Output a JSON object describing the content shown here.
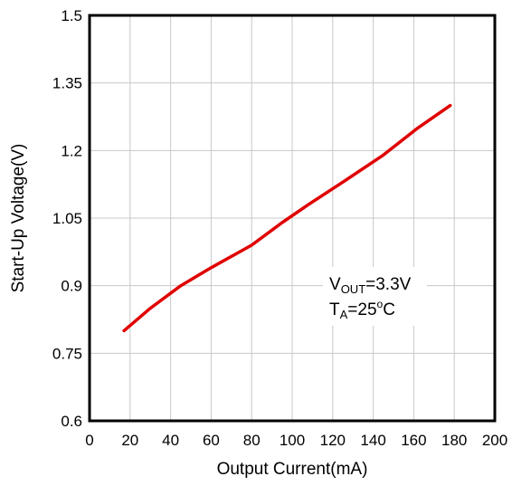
{
  "chart_data": {
    "type": "line",
    "title": "",
    "xlabel": "Output Current(mA)",
    "ylabel": "Start-Up Voltage(V)",
    "xlim": [
      0,
      200
    ],
    "ylim": [
      0.6,
      1.5
    ],
    "xticks": [
      0,
      20,
      40,
      60,
      80,
      100,
      120,
      140,
      160,
      180,
      200
    ],
    "yticks": [
      0.6,
      0.75,
      0.9,
      1.05,
      1.2,
      1.35,
      1.5
    ],
    "xtick_labels": [
      "0",
      "20",
      "40",
      "60",
      "80",
      "100",
      "120",
      "140",
      "160",
      "180",
      "200"
    ],
    "ytick_labels": [
      "0.6",
      "0.75",
      "0.9",
      "1.05",
      "1.2",
      "1.35",
      "1.5"
    ],
    "grid": true,
    "legend": "none",
    "series": [
      {
        "color": "#e00000",
        "x": [
          17,
          30,
          45,
          60,
          80,
          95,
          108,
          125,
          145,
          162,
          178
        ],
        "y": [
          0.8,
          0.85,
          0.9,
          0.94,
          0.99,
          1.04,
          1.08,
          1.13,
          1.19,
          1.25,
          1.3
        ]
      }
    ],
    "annotations": {
      "line1": {
        "main": "V",
        "sub": "OUT",
        "rest": "=3.3V"
      },
      "line2": {
        "main": "T",
        "sub": "A",
        "rest1": "=25",
        "sup": "o",
        "rest2": "C"
      }
    }
  }
}
